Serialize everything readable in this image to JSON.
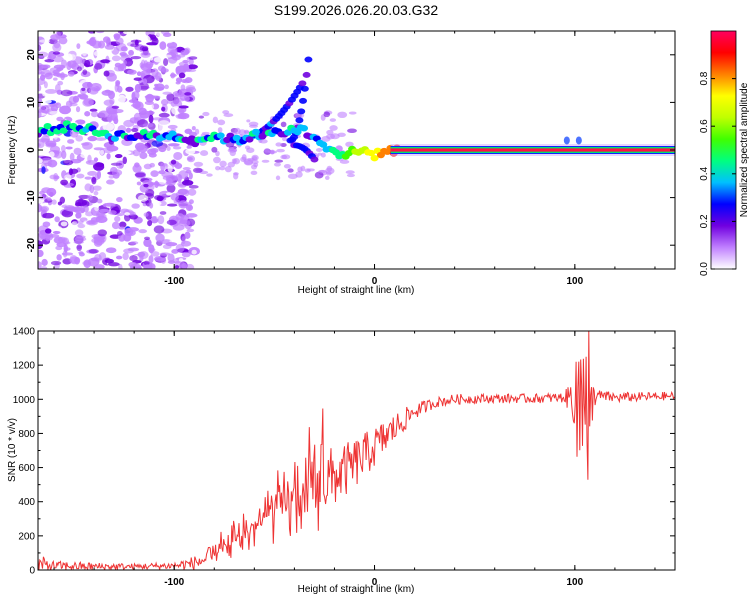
{
  "title": "S199.2026.026.20.03.G32",
  "chart_data": [
    {
      "type": "heatmap",
      "xlabel": "Height of straight line (km)",
      "ylabel": "Frequency (Hz)",
      "xlim": [
        -168,
        150
      ],
      "ylim": [
        -25,
        25
      ],
      "xticks": [
        -100,
        0,
        100
      ],
      "yticks": [
        -20,
        -10,
        0,
        10,
        20
      ],
      "colorbar": {
        "label": "Normalized spectral amplitude",
        "range": [
          0,
          1
        ],
        "ticks": [
          "0.0",
          "0.2",
          "0.4",
          "0.6",
          "0.8"
        ],
        "colors": [
          "#ffffff",
          "#c080ff",
          "#7000e0",
          "#0000ff",
          "#00c0ff",
          "#00ff80",
          "#40ff00",
          "#c0ff00",
          "#ffff00",
          "#ff8000",
          "#ff0000",
          "#ff0060"
        ]
      },
      "ridge": {
        "x": [
          -168,
          -150,
          -130,
          -115,
          -100,
          -90,
          -80,
          -70,
          -60,
          -50,
          -40,
          -35,
          -30,
          -25,
          -20,
          -15,
          -10,
          -5,
          0,
          5,
          10,
          150
        ],
        "freq": [
          4,
          5,
          3,
          3,
          3,
          2,
          3,
          2,
          3,
          4,
          4,
          4,
          2,
          1,
          -1,
          -1,
          0,
          0,
          -1,
          0,
          0,
          0
        ]
      }
    },
    {
      "type": "line",
      "xlabel": "Height of straight line (km)",
      "ylabel": "SNR (10 * v/v)",
      "xlim": [
        -168,
        150
      ],
      "ylim": [
        0,
        1400
      ],
      "xticks": [
        -100,
        0,
        100
      ],
      "yticks": [
        0,
        200,
        400,
        600,
        800,
        1000,
        1200,
        1400
      ],
      "color": "#ee3333",
      "series": [
        {
          "name": "SNR",
          "x": [
            -168,
            -160,
            -140,
            -120,
            -100,
            -90,
            -80,
            -70,
            -60,
            -50,
            -40,
            -30,
            -20,
            -10,
            0,
            10,
            20,
            30,
            40,
            60,
            80,
            95,
            100,
            104,
            108,
            112,
            120,
            150
          ],
          "values": [
            30,
            25,
            20,
            20,
            25,
            40,
            80,
            170,
            260,
            350,
            420,
            480,
            540,
            620,
            720,
            830,
            930,
            980,
            1000,
            1005,
            1005,
            1010,
            1010,
            1010,
            1010,
            1020,
            1010,
            1020
          ],
          "envelope": [
            130,
            70,
            60,
            50,
            60,
            110,
            200,
            330,
            480,
            620,
            760,
            980,
            820,
            870,
            920,
            980,
            1010,
            1030,
            1050,
            1050,
            1050,
            1060,
            1300,
            1400,
            1150,
            1080,
            1060,
            1060
          ]
        }
      ]
    }
  ]
}
